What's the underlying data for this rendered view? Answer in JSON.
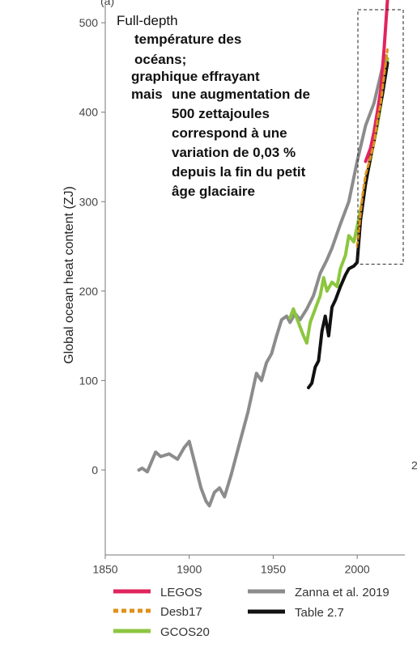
{
  "chart_data": {
    "type": "line",
    "panel_label": "(a)",
    "title": "Full-depth",
    "ylabel": "Global ocean heat content (ZJ)",
    "xlabel": "",
    "xlim": [
      1850,
      2025
    ],
    "ylim": [
      -95,
      520
    ],
    "xticks": [
      1850,
      1900,
      1950,
      2000
    ],
    "yticks": [
      0,
      100,
      200,
      300,
      400,
      500
    ],
    "cut_tick_label": "2",
    "grid": false,
    "legend_placement": "bottom",
    "highlight_box": {
      "x": [
        2000,
        2025
      ],
      "y": [
        230,
        520
      ]
    },
    "annotations": [
      "température des",
      "océans;",
      "graphique effrayant",
      "mais",
      "une augmentation de",
      "500 zettajoules",
      "correspond à une",
      "variation de 0,03 %",
      "depuis la fin du petit",
      "âge  glaciaire"
    ],
    "series": [
      {
        "name": "LEGOS",
        "color": "#e0245e",
        "dash": false,
        "x": [
          2005,
          2008,
          2010,
          2012,
          2014,
          2016,
          2018
        ],
        "y": [
          345,
          360,
          378,
          400,
          425,
          470,
          525
        ]
      },
      {
        "name": "Desb17",
        "color": "#e0901b",
        "dash": true,
        "x": [
          2000,
          2003,
          2005,
          2008,
          2010,
          2012,
          2014,
          2016,
          2018
        ],
        "y": [
          250,
          305,
          330,
          350,
          365,
          390,
          410,
          440,
          470
        ]
      },
      {
        "name": "GCOS20",
        "color": "#8cc63f",
        "dash": false,
        "x": [
          1960,
          1962,
          1965,
          1968,
          1970,
          1972,
          1975,
          1978,
          1980,
          1982,
          1985,
          1988,
          1990,
          1993,
          1995,
          1998,
          2000,
          2003,
          2006,
          2009,
          2012,
          2015,
          2018
        ],
        "y": [
          170,
          180,
          165,
          150,
          142,
          165,
          180,
          195,
          215,
          200,
          210,
          205,
          225,
          240,
          262,
          255,
          272,
          300,
          330,
          358,
          385,
          420,
          460
        ]
      },
      {
        "name": "Zanna et al. 2019",
        "color": "#8c8c8c",
        "dash": false,
        "x": [
          1870,
          1872,
          1875,
          1880,
          1883,
          1888,
          1893,
          1897,
          1900,
          1903,
          1907,
          1910,
          1912,
          1915,
          1918,
          1921,
          1925,
          1930,
          1935,
          1940,
          1943,
          1946,
          1949,
          1952,
          1955,
          1958,
          1960,
          1963,
          1966,
          1970,
          1974,
          1978,
          1982,
          1985,
          1990,
          1995,
          2000,
          2005,
          2010,
          2015,
          2017
        ],
        "y": [
          0,
          2,
          -2,
          20,
          15,
          18,
          12,
          25,
          32,
          10,
          -20,
          -35,
          -40,
          -25,
          -20,
          -30,
          -5,
          30,
          65,
          108,
          100,
          120,
          130,
          150,
          168,
          172,
          165,
          175,
          168,
          180,
          195,
          220,
          235,
          248,
          275,
          300,
          345,
          385,
          410,
          450,
          463
        ]
      },
      {
        "name": "Table 2.7",
        "color": "#111111",
        "dash": false,
        "x": [
          1971,
          1973,
          1975,
          1977,
          1979,
          1981,
          1983,
          1985,
          1987,
          1990,
          1993,
          1995,
          1998,
          2000,
          2002,
          2005,
          2008,
          2010,
          2012,
          2015,
          2018
        ],
        "y": [
          92,
          97,
          115,
          122,
          155,
          172,
          150,
          182,
          190,
          205,
          218,
          225,
          228,
          232,
          280,
          320,
          350,
          368,
          390,
          420,
          455
        ]
      }
    ]
  }
}
